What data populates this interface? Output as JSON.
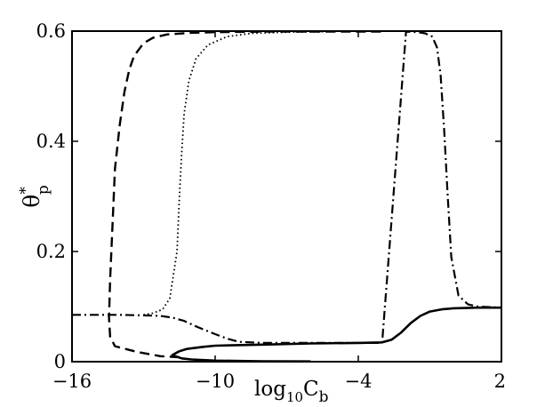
{
  "chart_data": {
    "type": "line",
    "title": "",
    "xlabel": {
      "base": "log",
      "sub": "10",
      "var": "C",
      "var_sub": "b"
    },
    "ylabel": {
      "var": "θ",
      "sup": "*",
      "sub": "p"
    },
    "xlim": [
      -16,
      2
    ],
    "ylim": [
      0,
      0.6
    ],
    "xticks": [
      -16,
      -10,
      -4,
      2
    ],
    "xtick_labels": [
      "−16",
      "−10",
      "−4",
      "2"
    ],
    "yticks": [
      0,
      0.2,
      0.4,
      0.6
    ],
    "ytick_labels": [
      "0",
      "0.2",
      "0.4",
      "0.6"
    ],
    "grid": false,
    "legend": "none",
    "series": [
      {
        "style": "solid",
        "x": [
          -11.5,
          -11.8,
          -11.4,
          -11.0,
          -10.0,
          -8.0,
          -6.0,
          -4.0,
          -3.0,
          -2.7,
          -2.3,
          -1.9,
          -1.5,
          -1.1,
          -0.7,
          0.0,
          2.0,
          2.0,
          0.0,
          -4.0,
          -8.0,
          -10.0,
          -11.0,
          -11.5
        ],
        "y": [
          0.019,
          0.012,
          0.006,
          0.004,
          0.002,
          0.0007,
          0.0005,
          0.0005,
          0.0005,
          0.0005,
          0.0005,
          0.0005,
          0.0005,
          0.0005,
          0.0005,
          0.0005,
          0.0005,
          0.098,
          0.098,
          0.035,
          0.031,
          0.027,
          0.025,
          0.019
        ],
        "y_upper": {
          "x": [
            -11.5,
            -11.2,
            -10.5,
            -10.0,
            -8.0,
            -6.0,
            -4.0,
            -3.0,
            -2.6,
            -2.2,
            -1.8,
            -1.4,
            -1.0,
            -0.5,
            0.0,
            1.0,
            2.0
          ],
          "y": [
            0.019,
            0.023,
            0.027,
            0.029,
            0.031,
            0.033,
            0.034,
            0.035,
            0.04,
            0.053,
            0.07,
            0.083,
            0.091,
            0.095,
            0.097,
            0.098,
            0.098
          ]
        }
      },
      {
        "style": "dashed",
        "x": [
          -11.5,
          -12.3,
          -13.3,
          -14.2,
          -14.4,
          -14.45,
          -14.4,
          -14.3,
          -14.2,
          -14.0,
          -13.8,
          -13.6,
          -13.4,
          -13.0,
          -12.6,
          -12.0,
          -11.0,
          -10.0,
          -8.0,
          -6.0,
          -4.0,
          -3.0
        ],
        "y": [
          0.008,
          0.01,
          0.018,
          0.028,
          0.045,
          0.08,
          0.15,
          0.25,
          0.35,
          0.43,
          0.49,
          0.53,
          0.555,
          0.578,
          0.588,
          0.594,
          0.597,
          0.598,
          0.599,
          0.599,
          0.599,
          0.599
        ]
      },
      {
        "style": "dotted",
        "x": [
          -13.0,
          -12.6,
          -12.2,
          -11.9,
          -11.6,
          -11.5,
          -11.4,
          -11.3,
          -11.1,
          -10.8,
          -10.3,
          -9.5,
          -8.5,
          -7.0,
          -5.0
        ],
        "y": [
          0.085,
          0.088,
          0.095,
          0.115,
          0.2,
          0.3,
          0.38,
          0.45,
          0.51,
          0.55,
          0.575,
          0.59,
          0.596,
          0.598,
          0.599
        ]
      },
      {
        "style": "dashdot",
        "x": [
          -16.0,
          -14.0,
          -13.0,
          -12.3,
          -11.8,
          -11.3,
          -10.8,
          -10.0,
          -9.5,
          -9.0,
          -8.0,
          -6.0,
          -4.0,
          -3.0,
          -2.0,
          -1.5,
          -1.2,
          -0.9,
          -0.7,
          -0.55,
          -0.4,
          -0.25,
          -0.1,
          0.2,
          0.6,
          1.0,
          2.0
        ],
        "y": [
          0.085,
          0.085,
          0.084,
          0.083,
          0.08,
          0.074,
          0.064,
          0.05,
          0.042,
          0.036,
          0.034,
          0.034,
          0.034,
          0.034,
          0.599,
          0.598,
          0.596,
          0.59,
          0.57,
          0.52,
          0.42,
          0.3,
          0.19,
          0.12,
          0.104,
          0.1,
          0.098
        ]
      }
    ]
  }
}
